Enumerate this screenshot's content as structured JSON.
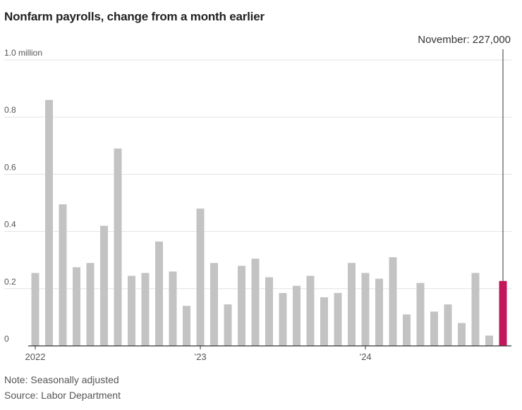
{
  "chart_data": {
    "type": "bar",
    "title": "Nonfarm payrolls, change from a month earlier",
    "ylabel": "",
    "xlabel": "",
    "ylim": [
      0,
      1.0
    ],
    "y_ticks": [
      {
        "value": 1.0,
        "label": "1.0 million"
      },
      {
        "value": 0.8,
        "label": "0.8"
      },
      {
        "value": 0.6,
        "label": "0.6"
      },
      {
        "value": 0.4,
        "label": "0.4"
      },
      {
        "value": 0.2,
        "label": "0.2"
      },
      {
        "value": 0.0,
        "label": "0"
      }
    ],
    "x_ticks": [
      {
        "index": 0,
        "label": "2022"
      },
      {
        "index": 12,
        "label": "’23"
      },
      {
        "index": 24,
        "label": "’24"
      }
    ],
    "categories": [
      "Jan 2022",
      "Feb 2022",
      "Mar 2022",
      "Apr 2022",
      "May 2022",
      "Jun 2022",
      "Jul 2022",
      "Aug 2022",
      "Sep 2022",
      "Oct 2022",
      "Nov 2022",
      "Dec 2022",
      "Jan 2023",
      "Feb 2023",
      "Mar 2023",
      "Apr 2023",
      "May 2023",
      "Jun 2023",
      "Jul 2023",
      "Aug 2023",
      "Sep 2023",
      "Oct 2023",
      "Nov 2023",
      "Dec 2023",
      "Jan 2024",
      "Feb 2024",
      "Mar 2024",
      "Apr 2024",
      "May 2024",
      "Jun 2024",
      "Jul 2024",
      "Aug 2024",
      "Sep 2024",
      "Oct 2024",
      "Nov 2024"
    ],
    "values": [
      0.255,
      0.86,
      0.495,
      0.275,
      0.29,
      0.42,
      0.69,
      0.245,
      0.255,
      0.365,
      0.26,
      0.14,
      0.48,
      0.29,
      0.145,
      0.28,
      0.305,
      0.24,
      0.185,
      0.21,
      0.245,
      0.17,
      0.185,
      0.29,
      0.255,
      0.235,
      0.31,
      0.11,
      0.22,
      0.12,
      0.145,
      0.08,
      0.255,
      0.036,
      0.227
    ],
    "highlight_index": 34,
    "annotation": "November: 227,000",
    "colors": {
      "bar": "#c3c3c3",
      "highlight": "#c2185b",
      "grid": "#e3e3e3",
      "axis": "#333333"
    }
  },
  "notes": {
    "note": "Note: Seasonally adjusted",
    "source": "Source: Labor Department"
  }
}
